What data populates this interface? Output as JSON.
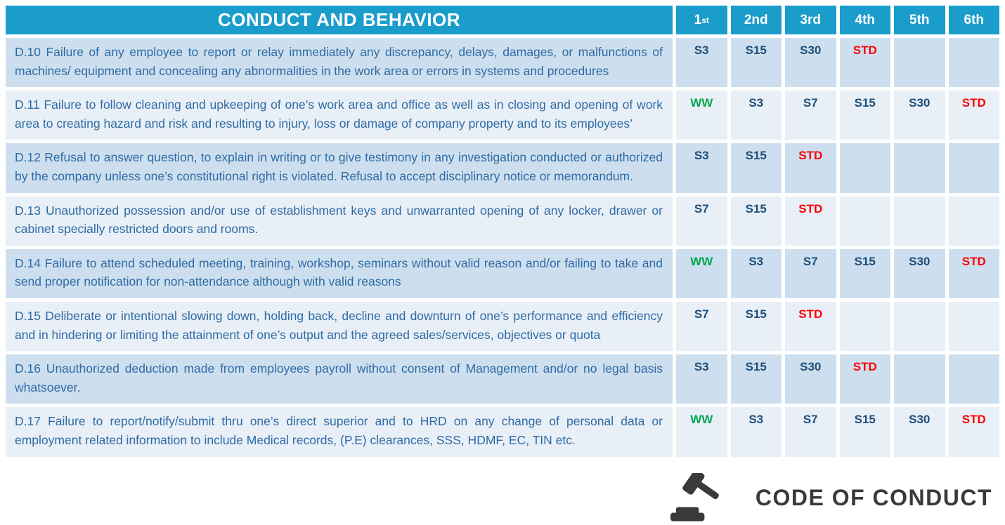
{
  "header": {
    "title": "CONDUCT AND BEHAVIOR",
    "occurrence_columns": [
      "1st",
      "2nd",
      "3rd",
      "4th",
      "5th",
      "6th"
    ]
  },
  "rows": [
    {
      "code": "D.10",
      "text": "Failure of any employee to report or relay  immediately any discrepancy, delays, damages, or malfunctions of  machines/ equipment and concealing any  abnormalities in the work area or errors in systems and procedures",
      "sanctions": [
        "S3",
        "S15",
        "S30",
        "STD",
        "",
        ""
      ]
    },
    {
      "code": "D.11",
      "text": "Failure to follow cleaning and upkeeping of one’s work area and office as well as in closing and opening of work area to creating hazard and risk and resulting to injury, loss or damage of company property and to its employees’",
      "sanctions": [
        "WW",
        "S3",
        "S7",
        "S15",
        "S30",
        "STD"
      ]
    },
    {
      "code": "D.12",
      "text": "Refusal to answer question, to explain in writing or to give testimony  in any investigation conducted or authorized by the company unless one’s constitutional right is violated. Refusal to accept disciplinary notice or memorandum.",
      "sanctions": [
        "S3",
        "S15",
        "STD",
        "",
        "",
        ""
      ]
    },
    {
      "code": "D.13",
      "text": "Unauthorized possession and/or use of establishment keys and unwarranted opening of any locker, drawer or cabinet specially restricted doors and rooms.",
      "sanctions": [
        "S7",
        "S15",
        "STD",
        "",
        "",
        ""
      ]
    },
    {
      "code": "D.14",
      "text": "Failure to attend  scheduled meeting, training,  workshop, seminars without valid reason  and/or  failing to take and send proper notification for non-attendance although with valid reasons",
      "sanctions": [
        "WW",
        "S3",
        "S7",
        "S15",
        "S30",
        "STD"
      ]
    },
    {
      "code": "D.15",
      "text": "Deliberate or intentional slowing down, holding back, decline and downturn of  one’s performance and efficiency and  in  hindering or limiting  the attainment  of  one’s output and the agreed sales/services, objectives or quota",
      "sanctions": [
        "S7",
        "S15",
        "STD",
        "",
        "",
        ""
      ]
    },
    {
      "code": "D.16",
      "text": "Unauthorized deduction made from employees payroll without consent of Management and/or no legal basis whatsoever.",
      "sanctions": [
        "S3",
        "S15",
        "S30",
        "STD",
        "",
        ""
      ]
    },
    {
      "code": "D.17",
      "text": "Failure to report/notify/submit thru  one’s  direct superior and to HRD on any change of personal data or employment related information to include Medical records, (P.E) clearances, SSS, HDMF, EC, TIN  etc.",
      "sanctions": [
        "WW",
        "S3",
        "S7",
        "S15",
        "S30",
        "STD"
      ]
    }
  ],
  "footer": {
    "logo_text": "CODE OF CONDUCT",
    "logo_icon": "gavel-icon"
  },
  "colors": {
    "header_bg": "#1A9DCB",
    "row_alt_dark": "#CDDFEE",
    "row_alt_light": "#E8EFF6",
    "description_text": "#2F6BA6",
    "sanction_navy": "#1F4E79",
    "sanction_green": "#00A651",
    "sanction_red": "#FF0000",
    "logo_color": "#3A3A3A"
  }
}
